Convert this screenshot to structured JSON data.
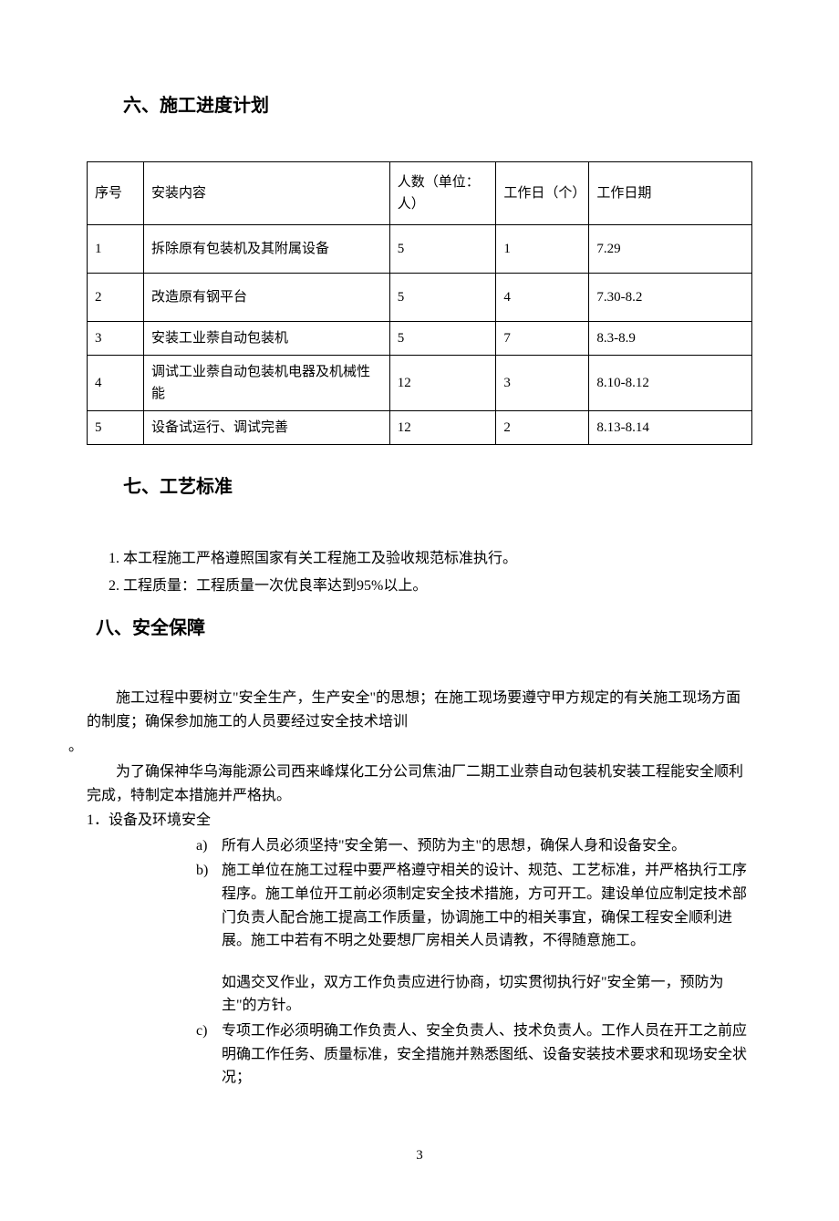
{
  "section6": {
    "title": "六、施工进度计划",
    "table": {
      "headers": {
        "col1": "序号",
        "col2": "安装内容",
        "col3": "人数（单位：人）",
        "col4": "工作日（个）",
        "col5": "工作日期"
      },
      "rows": [
        {
          "no": "1",
          "content": "拆除原有包装机及其附属设备",
          "people": "5",
          "days": "1",
          "date": "7.29"
        },
        {
          "no": "2",
          "content": "改造原有钢平台",
          "people": "5",
          "days": "4",
          "date": "7.30-8.2"
        },
        {
          "no": "3",
          "content": "安装工业萘自动包装机",
          "people": "5",
          "days": "7",
          "date": "8.3-8.9"
        },
        {
          "no": "4",
          "content": "调试工业萘自动包装机电器及机械性能",
          "people": "12",
          "days": "3",
          "date": "8.10-8.12"
        },
        {
          "no": "5",
          "content": "设备试运行、调试完善",
          "people": "12",
          "days": "2",
          "date": "8.13-8.14"
        }
      ]
    }
  },
  "section7": {
    "title": "七、工艺标准",
    "items": [
      "1.  本工程施工严格遵照国家有关工程施工及验收规范标准执行。",
      "2.  工程质量：工程质量一次优良率达到95%以上。"
    ]
  },
  "section8": {
    "title": "八、安全保障",
    "para1": "施工过程中要树立\"安全生产，生产安全\"的思想；在施工现场要遵守甲方规定的有关施工现场方面的制度；确保参加施工的人员要经过安全技术培训",
    "para1_end": "。",
    "para2": "为了确保神华乌海能源公司西来峰煤化工分公司焦油厂二期工业萘自动包装机安装工程能安全顺利完成，特制定本措施并严格执。",
    "item1_title": "1．设备及环境安全",
    "subitems": [
      {
        "marker": "a)",
        "text": "所有人员必须坚持\"安全第一、预防为主\"的思想，确保人身和设备安全。"
      },
      {
        "marker": "b)",
        "text": "施工单位在施工过程中要严格遵守相关的设计、规范、工艺标准，并严格执行工序程序。施工单位开工前必须制定安全技术措施，方可开工。建设单位应制定技术部门负责人配合施工提高工作质量，协调施工中的相关事宜，确保工程安全顺利进展。施工中若有不明之处要想厂房相关人员请教，不得随意施工。",
        "extra": "如遇交叉作业，双方工作负责应进行协商，切实贯彻执行好\"安全第一，预防为主\"的方针。"
      },
      {
        "marker": "c)",
        "text": "专项工作必须明确工作负责人、安全负责人、技术负责人。工作人员在开工之前应明确工作任务、质量标准，安全措施并熟悉图纸、设备安装技术要求和现场安全状况；"
      }
    ]
  },
  "page_number": "3"
}
